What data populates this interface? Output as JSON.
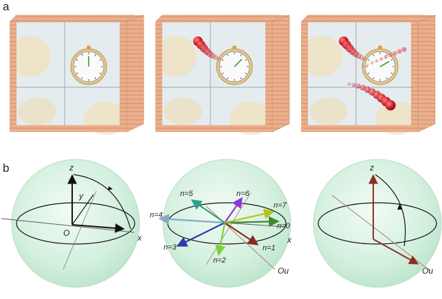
{
  "panel_labels": {
    "a": "a",
    "b": "b"
  },
  "sphere1": {
    "z": "z",
    "y": "y",
    "origin": "O",
    "x": "x"
  },
  "sphere2": {
    "x": "x",
    "ou": "Ou",
    "n_labels": [
      "n=0",
      "n=1",
      "n=2",
      "n=3",
      "n=4",
      "n=5",
      "n=6",
      "n=7"
    ],
    "n_colors": [
      "#3a8a2a",
      "#8a2a20",
      "#7fcf3a",
      "#2a3aa8",
      "#8aa8c0",
      "#2aa08a",
      "#8a3ad0",
      "#b8c020"
    ]
  },
  "sphere3": {
    "z": "z",
    "ou": "Ou"
  },
  "colors": {
    "wood": "#e8a07a",
    "glass": "#dfe9ee",
    "sphere": "#cfeedd",
    "bead": "#d8303a",
    "axis_arrow": "#8a3020"
  }
}
